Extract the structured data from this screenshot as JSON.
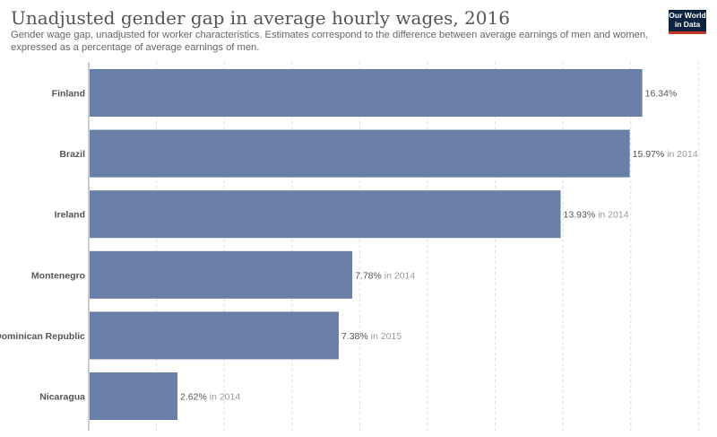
{
  "header": {
    "title": "Unadjusted gender gap in average hourly wages, 2016",
    "subtitle": "Gender wage gap, unadjusted for worker characteristics. Estimates correspond to the difference between average earnings of men and women, expressed as a percentage of average earnings of men.",
    "logo_line1": "Our World",
    "logo_line2": "in Data"
  },
  "colors": {
    "bar": "#6a7fa8",
    "label": "#555555",
    "year_note": "#999999",
    "grid": "#dddddd",
    "axis": "#999999"
  },
  "chart_data": {
    "type": "bar",
    "orientation": "horizontal",
    "title": "Unadjusted gender gap in average hourly wages, 2016",
    "categories": [
      "Finland",
      "Brazil",
      "Ireland",
      "Montenegro",
      "Dominican Republic",
      "Nicaragua"
    ],
    "values": [
      16.34,
      15.97,
      13.93,
      7.78,
      7.38,
      2.62
    ],
    "value_labels": [
      "16.34%",
      "15.97%",
      "13.93%",
      "7.78%",
      "7.38%",
      "2.62%"
    ],
    "year_notes": [
      "",
      "in 2014",
      "in 2014",
      "in 2014",
      "in 2015",
      "in 2014"
    ],
    "xlim": [
      0,
      18
    ],
    "grid": true,
    "xlabel": "",
    "ylabel": ""
  }
}
